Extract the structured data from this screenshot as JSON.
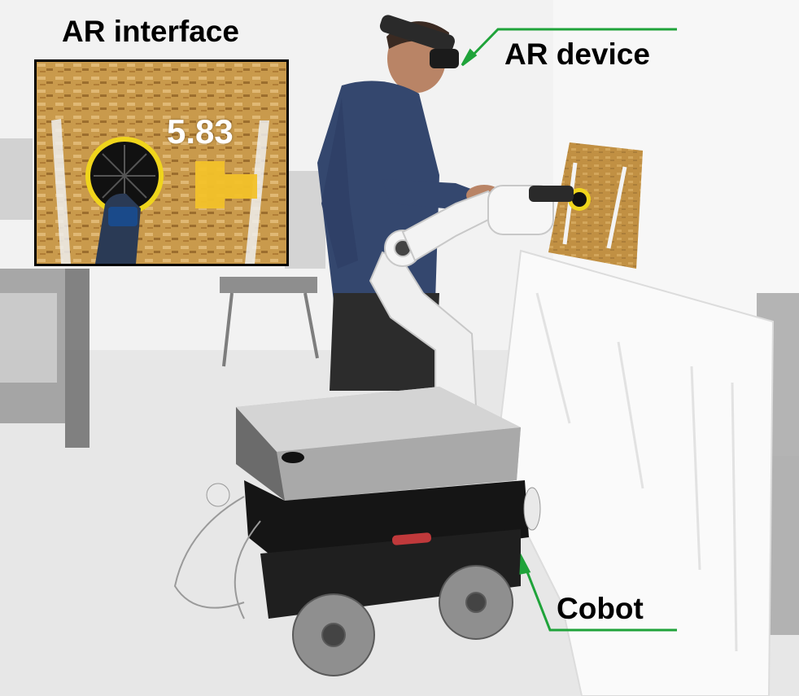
{
  "labels": {
    "ar_interface": "AR interface",
    "ar_device": "AR device",
    "cobot": "Cobot"
  },
  "inset": {
    "value": "5.83"
  },
  "colors": {
    "annotation_arrow": "#1fa33a",
    "board": "#c99a4c",
    "sander_pad": "#f0d51c",
    "ar_marker": "#f3c22a"
  }
}
